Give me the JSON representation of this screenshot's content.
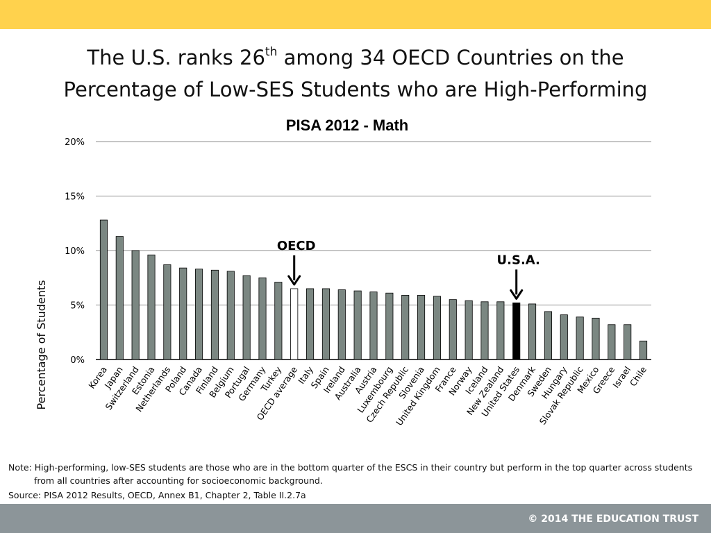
{
  "slide": {
    "title_line1_pre": "The U.S. ranks 26",
    "title_sup": "th",
    "title_line1_post": " among 34 OECD Countries on the",
    "title_line2": "Percentage of Low-SES Students who are High-Performing",
    "note": "Note: High-performing, low-SES students are those who are in the bottom quarter of the ESCS in their country but perform in the top quarter across students from all countries after accounting for socioeconomic background.",
    "source": "Source: PISA 2012 Results, OECD, Annex B1, Chapter 2, Table II.2.7a",
    "copyright": "© 2014 THE EDUCATION TRUST"
  },
  "chart_data": {
    "type": "bar",
    "title": "PISA 2012 - Math",
    "xlabel": "",
    "ylabel": "Percentage of Students",
    "ylim": [
      0,
      20
    ],
    "y_ticks": [
      0,
      5,
      10,
      15,
      20
    ],
    "y_tick_labels": [
      "0%",
      "5%",
      "10%",
      "15%",
      "20%"
    ],
    "grid": true,
    "categories": [
      "Korea",
      "Japan",
      "Switzerland",
      "Estonia",
      "Netherlands",
      "Poland",
      "Canada",
      "Finland",
      "Belgium",
      "Portugal",
      "Germany",
      "Turkey",
      "OECD average",
      "Italy",
      "Spain",
      "Ireland",
      "Australia",
      "Austria",
      "Luxembourg",
      "Czech Republic",
      "Slovenia",
      "United Kingdom",
      "France",
      "Norway",
      "Iceland",
      "New Zealand",
      "United States",
      "Denmark",
      "Sweden",
      "Hungary",
      "Slovak Republic",
      "Mexico",
      "Greece",
      "Israel",
      "Chile"
    ],
    "values": [
      12.8,
      11.3,
      10.0,
      9.6,
      8.7,
      8.4,
      8.3,
      8.2,
      8.1,
      7.7,
      7.5,
      7.1,
      6.5,
      6.5,
      6.5,
      6.4,
      6.3,
      6.2,
      6.1,
      5.9,
      5.9,
      5.8,
      5.5,
      5.4,
      5.3,
      5.3,
      5.2,
      5.1,
      4.4,
      4.1,
      3.9,
      3.8,
      3.2,
      3.2,
      1.7
    ],
    "colors": {
      "default": "#7b8782",
      "OECD average": "#ffffff",
      "United States": "#000000",
      "outline": "#000000",
      "grid": "#8c8c8c"
    },
    "annotations": [
      {
        "text": "OECD",
        "target": "OECD average"
      },
      {
        "text": "U.S.A.",
        "target": "United States"
      }
    ]
  }
}
